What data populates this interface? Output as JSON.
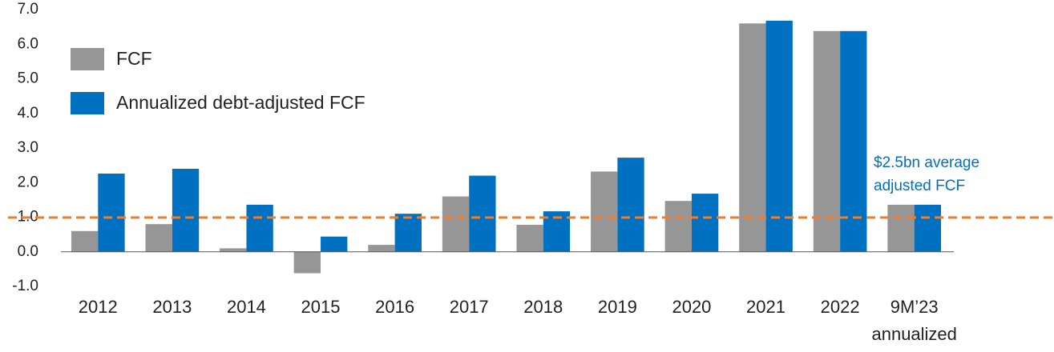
{
  "chart_data": {
    "type": "bar",
    "categories": [
      "2012",
      "2013",
      "2014",
      "2015",
      "2016",
      "2017",
      "2018",
      "2019",
      "2020",
      "2021",
      "2022",
      "9M’23\nannualized"
    ],
    "series": [
      {
        "name": "FCF",
        "color": "#969696",
        "values": [
          0.6,
          0.8,
          0.1,
          -0.62,
          0.2,
          1.6,
          0.78,
          2.32,
          1.47,
          6.6,
          6.38,
          1.36
        ]
      },
      {
        "name": "Annualized debt-adjusted FCF",
        "color": "#0070c0",
        "values": [
          2.26,
          2.4,
          1.36,
          0.44,
          1.1,
          2.2,
          1.17,
          2.72,
          1.68,
          6.68,
          6.38,
          1.36
        ]
      }
    ],
    "ylim": [
      -1,
      7
    ],
    "yticks": [
      {
        "value": -1,
        "label": "-1.0"
      },
      {
        "value": 0,
        "label": "0.0"
      },
      {
        "value": 1,
        "label": "1.0"
      },
      {
        "value": 2,
        "label": "2.0"
      },
      {
        "value": 3,
        "label": "3.0"
      },
      {
        "value": 4,
        "label": "4.0"
      },
      {
        "value": 5,
        "label": "5.0"
      },
      {
        "value": 6,
        "label": "6.0"
      },
      {
        "value": 7,
        "label": "7.0"
      }
    ],
    "reference_line": {
      "value": 0.99,
      "color": "#ed7d31"
    },
    "annotation": [
      "$2.5bn average",
      "adjusted FCF"
    ],
    "grid": false,
    "legend": "top-left"
  }
}
